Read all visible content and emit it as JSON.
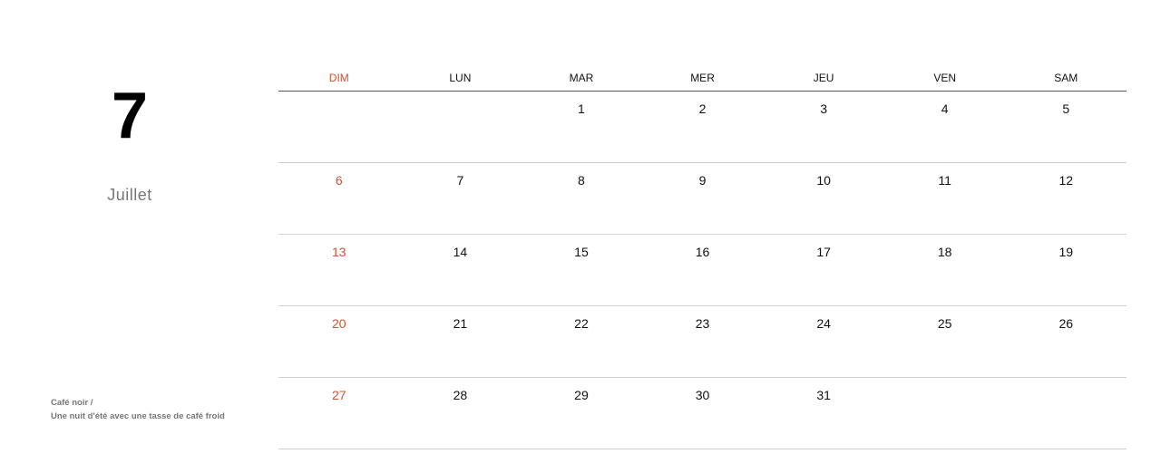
{
  "month": {
    "number": "7",
    "name": "Juillet"
  },
  "caption": {
    "line1": "Café noir /",
    "line2": "Une nuit d'été avec une tasse de café froid"
  },
  "weekdays": [
    "DIM",
    "LUN",
    "MAR",
    "MER",
    "JEU",
    "VEN",
    "SAM"
  ],
  "weeks": [
    [
      "",
      "",
      "1",
      "2",
      "3",
      "4",
      "5"
    ],
    [
      "6",
      "7",
      "8",
      "9",
      "10",
      "11",
      "12"
    ],
    [
      "13",
      "14",
      "15",
      "16",
      "17",
      "18",
      "19"
    ],
    [
      "20",
      "21",
      "22",
      "23",
      "24",
      "25",
      "26"
    ],
    [
      "27",
      "28",
      "29",
      "30",
      "31",
      "",
      ""
    ]
  ],
  "colors": {
    "sunday": "#d4502e",
    "text": "#111111",
    "caption": "#777777"
  }
}
